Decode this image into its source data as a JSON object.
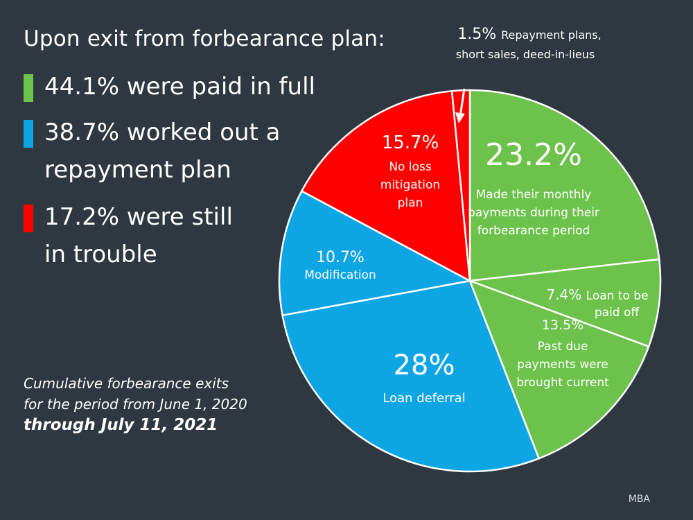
{
  "title": "Upon exit from forbearance plan:",
  "stats": [
    {
      "line1": "44.1% were paid in full",
      "line2": "",
      "color": "#6cc24a"
    },
    {
      "line1": "38.7% worked out a",
      "line2": "repayment plan",
      "color": "#0ea5e4"
    },
    {
      "line1": "17.2% were still",
      "line2": "in trouble",
      "color": "#ff0000"
    }
  ],
  "note": {
    "line1": "Cumulative forbearance exits",
    "line2": "for the period from June 1, 2020",
    "line3": "through July 11, 2021"
  },
  "source": "MBA",
  "chart_data": {
    "type": "pie",
    "title": "Upon exit from forbearance plan:",
    "slices": [
      {
        "pct": "23.2%",
        "value": 23.2,
        "label_lines": [
          "Made their monthly",
          "payments during their",
          "forbearance period"
        ],
        "color": "#6cc24a"
      },
      {
        "pct": "7.4%",
        "value": 7.4,
        "label_lines": [
          "Loan to be",
          "paid off"
        ],
        "color": "#6cc24a"
      },
      {
        "pct": "13.5%",
        "value": 13.5,
        "label_lines": [
          "Past due",
          "payments were",
          "brought current"
        ],
        "color": "#6cc24a"
      },
      {
        "pct": "28%",
        "value": 28.0,
        "label_lines": [
          "Loan deferral"
        ],
        "color": "#0ea5e4"
      },
      {
        "pct": "10.7%",
        "value": 10.7,
        "label_lines": [
          "Modification"
        ],
        "color": "#0ea5e4"
      },
      {
        "pct": "15.7%",
        "value": 15.7,
        "label_lines": [
          "No loss",
          "mitigation",
          "plan"
        ],
        "color": "#ff0000"
      },
      {
        "pct": "1.5%",
        "value": 1.5,
        "label_lines": [
          "Repayment plans,",
          "short sales, deed-in-lieus"
        ],
        "color": "#ff0000"
      }
    ]
  }
}
